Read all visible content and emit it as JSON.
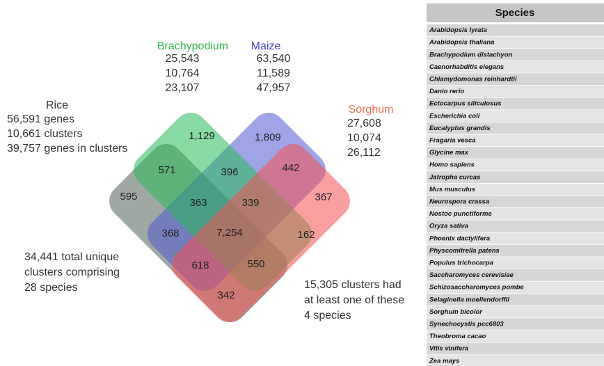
{
  "venn": {
    "sets": [
      {
        "name": "Brachypodium",
        "lines": [
          "25,543",
          "10,764",
          "23,107"
        ]
      },
      {
        "name": "Maize",
        "lines": [
          "63,540",
          "11,589",
          "47,957"
        ]
      },
      {
        "name": "Sorghum",
        "lines": [
          "27,608",
          "10,074",
          "26,112"
        ]
      },
      {
        "name": "Rice",
        "lines": [
          "56,591 genes",
          "10,661 clusters",
          "39,757 genes in clusters"
        ]
      }
    ],
    "regions": [
      "1,129",
      "1,809",
      "571",
      "396",
      "442",
      "595",
      "363",
      "339",
      "367",
      "368",
      "7,254",
      "162",
      "618",
      "550",
      "342"
    ],
    "notes": [
      [
        "34,441 total unique",
        "clusters comprising",
        "28 species"
      ],
      [
        "15,305 clusters had",
        "at least one of these",
        "4 species"
      ]
    ]
  },
  "table": {
    "header": "Species",
    "rows": [
      "Arabidopsis lyrata",
      "Arabidopsis thaliana",
      "Brachypodium distachyon",
      "Caenorhabditis elegans",
      "Chlamydomonas reinhardtii",
      "Danio rerio",
      "Ectocarpus siliculosus",
      "Escherichia coli",
      "Eucalyptus grandis",
      "Fragaria vesca",
      "Glycine max",
      "Homo sapiens",
      "Jatropha curcas",
      "Mus musculus",
      "Neurospora crassa",
      "Nostoc punctiforme",
      "Oryza sativa",
      "Phoenix dactylifera",
      "Physcomitrella patens",
      "Populus trichocarpa",
      "Saccharomyces cerevisiae",
      "Schizosaccharomyces pombe",
      "Selaginella moellendorffii",
      "Sorghum bicolor",
      "Synechocystis pcc6803",
      "Theobroma cacao",
      "Vitis vinifera",
      "Zea mays"
    ]
  }
}
